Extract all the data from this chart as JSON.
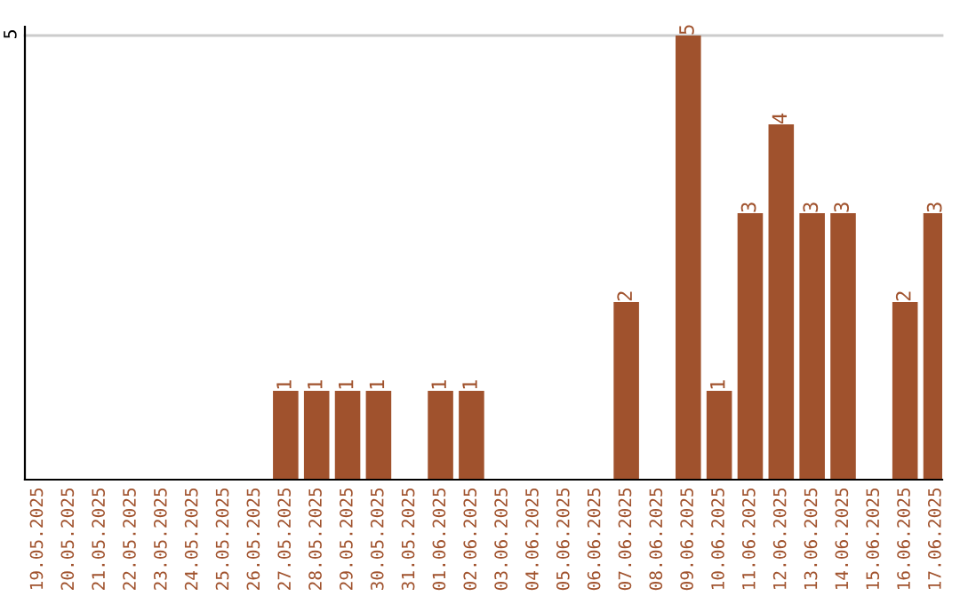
{
  "chart_data": {
    "type": "bar",
    "categories": [
      "19.05.2025",
      "20.05.2025",
      "21.05.2025",
      "22.05.2025",
      "23.05.2025",
      "24.05.2025",
      "25.05.2025",
      "26.05.2025",
      "27.05.2025",
      "28.05.2025",
      "29.05.2025",
      "30.05.2025",
      "31.05.2025",
      "01.06.2025",
      "02.06.2025",
      "03.06.2025",
      "04.06.2025",
      "05.06.2025",
      "06.06.2025",
      "07.06.2025",
      "08.06.2025",
      "09.06.2025",
      "10.06.2025",
      "11.06.2025",
      "12.06.2025",
      "13.06.2025",
      "14.06.2025",
      "15.06.2025",
      "16.06.2025",
      "17.06.2025"
    ],
    "values": [
      0,
      0,
      0,
      0,
      0,
      0,
      0,
      0,
      1,
      1,
      1,
      1,
      0,
      1,
      1,
      0,
      0,
      0,
      0,
      2,
      0,
      5,
      1,
      3,
      4,
      3,
      3,
      0,
      2,
      3
    ],
    "value_labels": [
      null,
      null,
      null,
      null,
      null,
      null,
      null,
      null,
      "1",
      "1",
      "1",
      "1",
      null,
      "1",
      "1",
      null,
      null,
      null,
      null,
      "2",
      null,
      "5",
      "1",
      "3",
      "4",
      "3",
      "3",
      null,
      "2",
      "3"
    ],
    "color": "#a0522d",
    "ylim": [
      0,
      5.1
    ],
    "yticks": [
      5
    ],
    "grid": "y"
  }
}
